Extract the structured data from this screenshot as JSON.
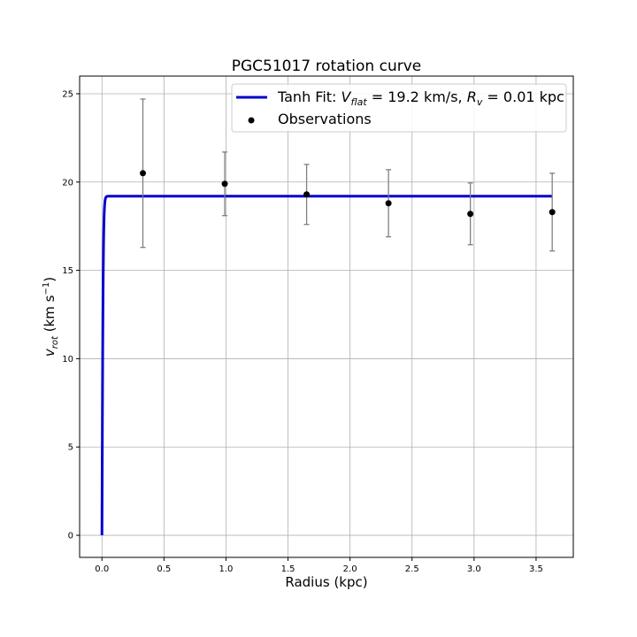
{
  "chart_data": {
    "type": "line",
    "title": "PGC51017 rotation curve",
    "xlabel": "Radius (kpc)",
    "ylabel": "v_rot (km s^-1)",
    "xlim": [
      -0.18,
      3.8
    ],
    "ylim": [
      -1.25,
      26.0
    ],
    "xticks": [
      0.0,
      0.5,
      1.0,
      1.5,
      2.0,
      2.5,
      3.0,
      3.5
    ],
    "xtick_labels": [
      "0.0",
      "0.5",
      "1.0",
      "1.5",
      "2.0",
      "2.5",
      "3.0",
      "3.5"
    ],
    "yticks": [
      0,
      5,
      10,
      15,
      20,
      25
    ],
    "ytick_labels": [
      "0",
      "5",
      "10",
      "15",
      "20",
      "25"
    ],
    "grid": true,
    "legend_position": "top-right",
    "fit": {
      "name": "Tanh Fit: V_flat = 19.2 km/s, R_v = 0.01 kpc",
      "model": "tanh",
      "v_flat": 19.2,
      "r_v": 0.01,
      "x_range": [
        0.0,
        3.63
      ],
      "color": "#0000cc"
    },
    "observations": {
      "name": "Observations",
      "x": [
        0.33,
        0.99,
        1.65,
        2.31,
        2.97,
        3.63
      ],
      "y": [
        20.5,
        19.9,
        19.3,
        18.8,
        18.2,
        18.3
      ],
      "yerr_low": [
        4.2,
        1.8,
        1.7,
        1.9,
        1.75,
        2.2
      ],
      "yerr_high": [
        4.2,
        1.8,
        1.7,
        1.9,
        1.75,
        2.2
      ],
      "marker_color": "#000000",
      "errorbar_color": "#808080"
    }
  }
}
